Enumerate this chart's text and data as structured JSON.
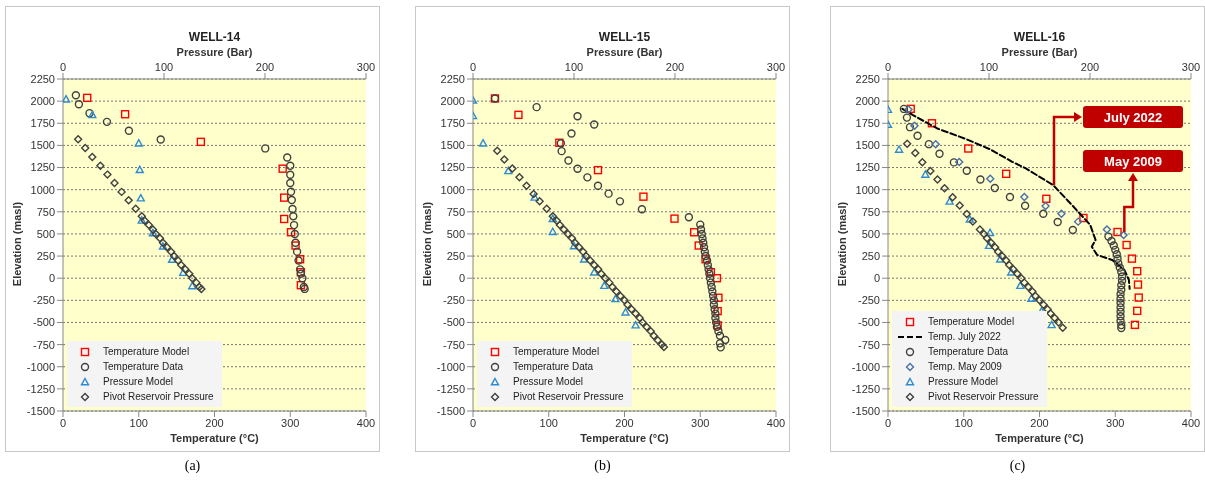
{
  "chart_data": [
    {
      "type": "scatter",
      "title": "WELL-14",
      "xlabel": "Temperature (°C)",
      "x2label": "Pressure (Bar)",
      "ylabel": "Elevation (masl)",
      "xlim": [
        0,
        400
      ],
      "xticks": [
        0,
        100,
        200,
        300,
        400
      ],
      "x2lim": [
        0,
        300
      ],
      "x2ticks": [
        0,
        100,
        200,
        300
      ],
      "ylim": [
        -1500,
        2250
      ],
      "yticks": [
        -1500,
        -1250,
        -1000,
        -750,
        -500,
        -250,
        0,
        250,
        500,
        750,
        1000,
        1250,
        1500,
        1750,
        2000,
        2250
      ],
      "grid": "y",
      "legend": "bottom left",
      "annotations": [
        "(a)"
      ],
      "series": [
        {
          "name": "Temperature Model",
          "color": "#ff0000",
          "marker": "square",
          "x": [
            32,
            82,
            182,
            290,
            292,
            292,
            301,
            307,
            313,
            314,
            314
          ],
          "values": [
            2037,
            1852,
            1540,
            1237,
            910,
            669,
            519,
            369,
            214,
            68,
            -79
          ]
        },
        {
          "name": "Temperature Data",
          "color": "#404040",
          "marker": "circle",
          "x": [
            17,
            21,
            35,
            58,
            87,
            129,
            267,
            296,
            300,
            300,
            300,
            301,
            302,
            303,
            304,
            305,
            306,
            307,
            309,
            311,
            313,
            314,
            316,
            318,
            319
          ],
          "values": [
            2067,
            1965,
            1864,
            1766,
            1665,
            1567,
            1466,
            1364,
            1270,
            1169,
            1075,
            977,
            883,
            781,
            700,
            600,
            500,
            400,
            300,
            200,
            100,
            50,
            0,
            -100,
            -121
          ]
        },
        {
          "name": "Pressure Model",
          "color": "#2e8bd0",
          "marker": "triangle",
          "axis": "x2",
          "x": [
            3,
            29,
            75,
            76,
            77,
            78,
            89,
            99,
            108,
            119,
            128
          ],
          "values": [
            2022,
            1845,
            1525,
            1225,
            905,
            654,
            511,
            361,
            211,
            64,
            -87
          ]
        },
        {
          "name": "Pivot Reservoir Pressure",
          "color": "#404040",
          "marker": "diamond",
          "axis": "x2",
          "x": [
            15,
            22,
            29,
            37,
            44,
            51,
            58,
            65,
            72,
            78,
            81,
            85,
            89,
            92,
            96,
            99,
            103,
            107,
            110,
            114,
            117,
            121,
            125,
            128,
            132,
            135,
            137
          ],
          "values": [
            1570,
            1470,
            1370,
            1270,
            1170,
            1075,
            975,
            880,
            785,
            700,
            650,
            600,
            550,
            500,
            450,
            400,
            350,
            300,
            250,
            200,
            150,
            100,
            50,
            0,
            -50,
            -100,
            -121
          ]
        }
      ]
    },
    {
      "type": "scatter",
      "title": "WELL-15",
      "xlabel": "Temperature (°C)",
      "x2label": "Pressure (Bar)",
      "ylabel": "Elevation (masl)",
      "xlim": [
        0,
        400
      ],
      "xticks": [
        0,
        100,
        200,
        300,
        400
      ],
      "x2lim": [
        0,
        300
      ],
      "x2ticks": [
        0,
        100,
        200,
        300
      ],
      "ylim": [
        -1500,
        2250
      ],
      "yticks": [
        -1500,
        -1250,
        -1000,
        -750,
        -500,
        -250,
        0,
        250,
        500,
        750,
        1000,
        1250,
        1500,
        1750,
        2000,
        2250
      ],
      "grid": "y",
      "legend": "bottom left",
      "annotations": [
        "(b)"
      ],
      "series": [
        {
          "name": "Temperature Model",
          "color": "#ff0000",
          "marker": "square",
          "x": [
            29,
            60,
            114,
            165,
            225,
            266,
            292,
            298,
            307,
            314,
            322,
            324,
            323,
            323
          ],
          "values": [
            2030,
            1845,
            1530,
            1221,
            921,
            673,
            519,
            369,
            214,
            68,
            0,
            -221,
            -372,
            -533
          ]
        },
        {
          "name": "Temperature Data",
          "color": "#404040",
          "marker": "circle",
          "x": [
            29,
            84,
            138,
            160,
            130,
            116,
            117,
            126,
            138,
            151,
            165,
            179,
            194,
            223,
            285,
            300,
            301,
            302,
            303,
            304,
            305,
            306,
            307,
            309,
            310,
            311,
            312,
            313,
            314,
            315,
            316,
            317,
            318,
            318,
            319,
            320,
            320,
            321,
            322,
            324,
            326,
            333,
            326,
            327
          ],
          "values": [
            2030,
            1932,
            1830,
            1736,
            1635,
            1525,
            1435,
            1330,
            1237,
            1139,
            1045,
            955,
            868,
            778,
            688,
            605,
            550,
            500,
            450,
            400,
            350,
            300,
            250,
            200,
            150,
            100,
            50,
            0,
            -50,
            -100,
            -150,
            -200,
            -250,
            -300,
            -350,
            -400,
            -450,
            -500,
            -550,
            -600,
            -650,
            -698,
            -736,
            -781
          ]
        },
        {
          "name": "Pressure Model",
          "color": "#2e8bd0",
          "marker": "triangle",
          "axis": "x2",
          "x": [
            0,
            0,
            10,
            35,
            61,
            79,
            79,
            100,
            110,
            120,
            130,
            141,
            151,
            161
          ],
          "values": [
            2010,
            1834,
            1525,
            1213,
            913,
            672,
            525,
            364,
            214,
            68,
            -83,
            -233,
            -384,
            -530
          ]
        },
        {
          "name": "Pivot Reservoir Pressure",
          "color": "#404040",
          "marker": "diamond",
          "axis": "x2",
          "x": [
            24,
            31,
            39,
            46,
            53,
            60,
            66,
            73,
            79,
            83,
            86,
            90,
            94,
            98,
            101,
            105,
            109,
            112,
            116,
            120,
            124,
            127,
            131,
            135,
            138,
            142,
            146,
            150,
            153,
            157,
            161,
            165,
            168,
            172,
            176,
            179,
            183,
            187,
            189
          ],
          "values": [
            1439,
            1340,
            1240,
            1140,
            1045,
            950,
            870,
            785,
            700,
            650,
            600,
            550,
            500,
            450,
            400,
            350,
            300,
            250,
            200,
            150,
            100,
            50,
            0,
            -50,
            -100,
            -150,
            -200,
            -250,
            -300,
            -350,
            -400,
            -450,
            -500,
            -550,
            -600,
            -650,
            -700,
            -750,
            -778
          ]
        }
      ]
    },
    {
      "type": "scatter",
      "title": "WELL-16",
      "xlabel": "Temperature (°C)",
      "x2label": "Pressure (Bar)",
      "ylabel": "Elevation (masl)",
      "xlim": [
        0,
        400
      ],
      "xticks": [
        0,
        100,
        200,
        300,
        400
      ],
      "x2lim": [
        0,
        300
      ],
      "x2ticks": [
        0,
        100,
        200,
        300
      ],
      "ylim": [
        -1500,
        2250
      ],
      "yticks": [
        -1500,
        -1250,
        -1000,
        -750,
        -500,
        -250,
        0,
        250,
        500,
        750,
        1000,
        1250,
        1500,
        1750,
        2000,
        2250
      ],
      "grid": "y",
      "legend": "bottom left",
      "annotations": [
        "(c)",
        "July 2022",
        {
          "text": "May 2009",
          "x": 312,
          "y": 522
        }
      ],
      "series": [
        {
          "name": "Temperature Model",
          "color": "#ff0000",
          "marker": "square",
          "x": [
            30,
            58,
            106,
            156,
            209,
            258,
            303,
            315,
            322,
            329,
            330,
            331,
            329,
            326
          ],
          "values": [
            1913,
            1750,
            1465,
            1179,
            897,
            680,
            522,
            375,
            221,
            79,
            -72,
            -219,
            -369,
            -527
          ]
        },
        {
          "name": "Temp. July 2022",
          "type": "line",
          "color": "#000000",
          "marker": "none",
          "line_style": "dashed",
          "x": [
            19,
            33,
            66,
            102,
            135,
            164,
            182,
            218,
            245,
            267,
            274,
            269,
            276,
            296,
            312,
            318,
            319
          ],
          "values": [
            1913,
            1841,
            1688,
            1575,
            1455,
            1315,
            1240,
            1052,
            807,
            601,
            432,
            356,
            263,
            206,
            94,
            -19,
            -120
          ]
        },
        {
          "name": "Temperature Data",
          "color": "#404040",
          "marker": "circle",
          "x": [
            21,
            25,
            29,
            39,
            54,
            68,
            87,
            104,
            122,
            141,
            161,
            181,
            205,
            224,
            244,
            291,
            295,
            298,
            300,
            302,
            303,
            304,
            306,
            308,
            309,
            309,
            308,
            308,
            307,
            307,
            307,
            307,
            307,
            307,
            307,
            308,
            308
          ],
          "values": [
            1912,
            1814,
            1706,
            1609,
            1514,
            1406,
            1308,
            1213,
            1115,
            1018,
            917,
            819,
            728,
            635,
            545,
            470,
            420,
            370,
            320,
            270,
            220,
            170,
            120,
            70,
            20,
            -30,
            -80,
            -130,
            -180,
            -230,
            -280,
            -330,
            -380,
            -430,
            -480,
            -530,
            -563
          ]
        },
        {
          "name": "Temp. May 2009",
          "color": "#4a6fa8",
          "marker": "diamond",
          "x": [
            27,
            35,
            63,
            94,
            135,
            180,
            208,
            229,
            251,
            289,
            311
          ],
          "values": [
            1905,
            1722,
            1514,
            1312,
            1123,
            917,
            815,
            729,
            639,
            549,
            488
          ]
        },
        {
          "name": "Pressure Model",
          "color": "#2e8bd0",
          "marker": "triangle",
          "axis": "x2",
          "x": [
            0,
            0,
            11,
            37,
            61,
            81,
            101,
            100,
            111,
            122,
            131,
            142,
            152,
            162
          ],
          "values": [
            1905,
            1736,
            1454,
            1172,
            868,
            665,
            514,
            368,
            214,
            68,
            -83,
            -229,
            -373,
            -527
          ]
        },
        {
          "name": "Pivot Reservoir Pressure",
          "color": "#404040",
          "marker": "diamond",
          "axis": "x2",
          "x": [
            19,
            27,
            34,
            42,
            49,
            56,
            64,
            71,
            78,
            84,
            91,
            95,
            98,
            102,
            106,
            109,
            113,
            117,
            120,
            124,
            128,
            132,
            135,
            139,
            143,
            146,
            150,
            154,
            158,
            161,
            165,
            169,
            173
          ],
          "values": [
            1519,
            1413,
            1310,
            1210,
            1115,
            1015,
            915,
            820,
            725,
            640,
            550,
            500,
            450,
            400,
            350,
            300,
            250,
            200,
            150,
            100,
            50,
            0,
            -50,
            -100,
            -150,
            -200,
            -250,
            -300,
            -350,
            -400,
            -450,
            -500,
            -560
          ]
        }
      ]
    }
  ]
}
